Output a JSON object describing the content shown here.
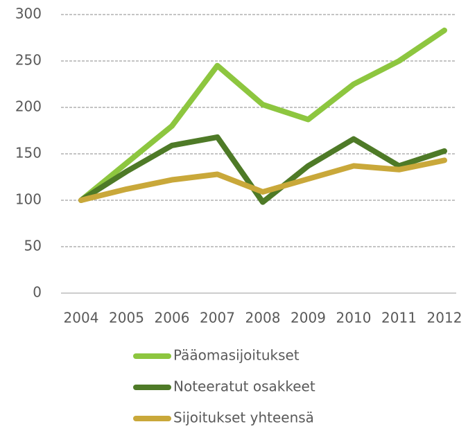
{
  "chart_data": {
    "type": "line",
    "categories": [
      "2004",
      "2005",
      "2006",
      "2007",
      "2008",
      "2009",
      "2010",
      "2011",
      "2012"
    ],
    "series": [
      {
        "name": "Pääomasijoitukset",
        "color": "#8dc63f",
        "values": [
          100,
          140,
          180,
          245,
          203,
          187,
          225,
          250,
          283
        ]
      },
      {
        "name": "Noteeratut osakkeet",
        "color": "#4e7a27",
        "values": [
          100,
          131,
          159,
          168,
          98,
          137,
          166,
          137,
          153
        ]
      },
      {
        "name": "Sijoitukset yhteensä",
        "color": "#c9a83a",
        "values": [
          100,
          112,
          122,
          128,
          109,
          123,
          137,
          133,
          143
        ]
      }
    ],
    "ylim": [
      0,
      300
    ],
    "yticks": [
      0,
      50,
      100,
      150,
      200,
      250,
      300
    ],
    "grid": true,
    "legend": "bottom"
  }
}
